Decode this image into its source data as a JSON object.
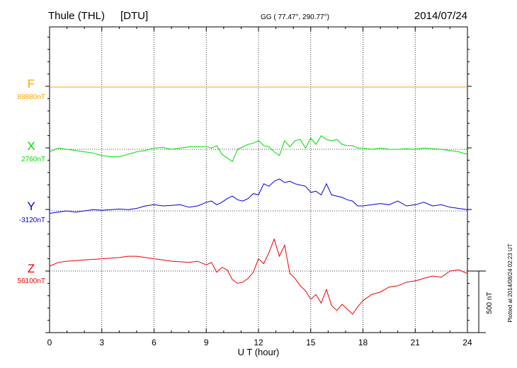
{
  "header": {
    "station": "Thule (THL)",
    "institute": "[DTU]",
    "coords": "GG ( 77.47°, 290.77°)",
    "date": "2014/07/24"
  },
  "footer": {
    "plotted": "Plotted at 2014/08/24 02:23 UT"
  },
  "chart_data": {
    "type": "line",
    "xlabel": "U T (hour)",
    "xlim": [
      0,
      24
    ],
    "xticks": [
      "0",
      "3",
      "6",
      "9",
      "12",
      "15",
      "18",
      "21",
      "24"
    ],
    "grid": true,
    "scale_bar_label": "500 nT",
    "scale_bar_nT": 500,
    "series": [
      {
        "name": "F",
        "baseline": "88880nT",
        "color": "#ffa500",
        "x": [
          0,
          24
        ],
        "values": [
          88880,
          88880
        ]
      },
      {
        "name": "X",
        "baseline": "2760nT",
        "color": "#00dd00",
        "x": [
          0,
          0.5,
          1,
          1.5,
          2,
          2.5,
          3,
          3.5,
          4,
          4.5,
          5,
          5.5,
          6,
          6.5,
          7,
          7.5,
          8,
          8.5,
          9,
          9.3,
          9.6,
          9.9,
          10.2,
          10.5,
          10.8,
          11.1,
          11.4,
          11.7,
          12,
          12.3,
          12.6,
          12.9,
          13.2,
          13.5,
          13.8,
          14.1,
          14.4,
          14.7,
          15,
          15.3,
          15.6,
          15.9,
          16.2,
          16.5,
          16.8,
          17.1,
          17.4,
          17.7,
          18,
          18.5,
          19,
          19.5,
          20,
          20.5,
          21,
          21.5,
          22,
          22.5,
          23,
          23.5,
          24
        ],
        "values": [
          2740,
          2770,
          2760,
          2750,
          2740,
          2730,
          2710,
          2700,
          2700,
          2720,
          2740,
          2750,
          2770,
          2775,
          2760,
          2770,
          2780,
          2780,
          2785,
          2770,
          2790,
          2720,
          2690,
          2660,
          2760,
          2780,
          2800,
          2810,
          2830,
          2790,
          2780,
          2740,
          2710,
          2830,
          2780,
          2830,
          2840,
          2770,
          2850,
          2800,
          2870,
          2840,
          2830,
          2840,
          2800,
          2790,
          2790,
          2770,
          2770,
          2760,
          2770,
          2760,
          2760,
          2765,
          2760,
          2770,
          2765,
          2760,
          2750,
          2740,
          2720
        ]
      },
      {
        "name": "Y",
        "baseline": "-3120nT",
        "color": "#0000dd",
        "x": [
          0,
          0.5,
          1,
          1.5,
          2,
          2.5,
          3,
          3.5,
          4,
          4.5,
          5,
          5.5,
          6,
          6.5,
          7,
          7.5,
          8,
          8.5,
          9,
          9.3,
          9.6,
          9.9,
          10.2,
          10.5,
          10.8,
          11.1,
          11.4,
          11.7,
          12,
          12.3,
          12.6,
          12.9,
          13.2,
          13.5,
          13.8,
          14.1,
          14.4,
          14.7,
          15,
          15.3,
          15.6,
          15.9,
          16.2,
          16.5,
          16.8,
          17.1,
          17.4,
          17.7,
          18,
          18.5,
          19,
          19.5,
          20,
          20.5,
          21,
          21.5,
          22,
          22.5,
          23,
          23.5,
          24
        ],
        "values": [
          -3140,
          -3130,
          -3120,
          -3130,
          -3120,
          -3110,
          -3115,
          -3110,
          -3105,
          -3110,
          -3100,
          -3080,
          -3070,
          -3080,
          -3075,
          -3070,
          -3090,
          -3080,
          -3050,
          -3040,
          -3070,
          -3050,
          -3020,
          -3000,
          -3030,
          -3040,
          -3020,
          -2980,
          -2990,
          -2900,
          -2920,
          -2880,
          -2860,
          -2890,
          -2880,
          -2900,
          -2910,
          -2920,
          -2970,
          -2960,
          -2990,
          -2900,
          -2990,
          -3000,
          -3010,
          -3030,
          -3040,
          -3080,
          -3080,
          -3070,
          -3060,
          -3070,
          -3040,
          -3080,
          -3070,
          -3050,
          -3080,
          -3070,
          -3090,
          -3100,
          -3110
        ]
      },
      {
        "name": "Z",
        "baseline": "56100nT",
        "color": "#ee0000",
        "x": [
          0,
          0.5,
          1,
          1.5,
          2,
          2.5,
          3,
          3.5,
          4,
          4.5,
          5,
          5.5,
          6,
          6.5,
          7,
          7.5,
          8,
          8.5,
          9,
          9.3,
          9.6,
          9.9,
          10.2,
          10.5,
          10.8,
          11.1,
          11.4,
          11.7,
          12,
          12.3,
          12.6,
          12.9,
          13.2,
          13.5,
          13.8,
          14.1,
          14.4,
          14.7,
          15,
          15.3,
          15.6,
          15.9,
          16.2,
          16.5,
          16.8,
          17.1,
          17.4,
          17.7,
          18,
          18.5,
          19,
          19.5,
          20,
          20.5,
          21,
          21.5,
          22,
          22.5,
          23,
          23.5,
          24
        ],
        "values": [
          56140,
          56170,
          56180,
          56185,
          56190,
          56195,
          56200,
          56205,
          56210,
          56220,
          56220,
          56210,
          56200,
          56190,
          56180,
          56175,
          56170,
          56180,
          56150,
          56170,
          56090,
          56130,
          56110,
          56030,
          56000,
          56010,
          56040,
          56090,
          56200,
          56160,
          56250,
          56360,
          56220,
          56310,
          56080,
          56040,
          55980,
          55940,
          55870,
          55910,
          55840,
          55950,
          55820,
          55780,
          55830,
          55790,
          55750,
          55810,
          55860,
          55910,
          55930,
          55970,
          55980,
          56010,
          56020,
          56040,
          56060,
          56050,
          56100,
          56110,
          56080
        ]
      }
    ]
  }
}
